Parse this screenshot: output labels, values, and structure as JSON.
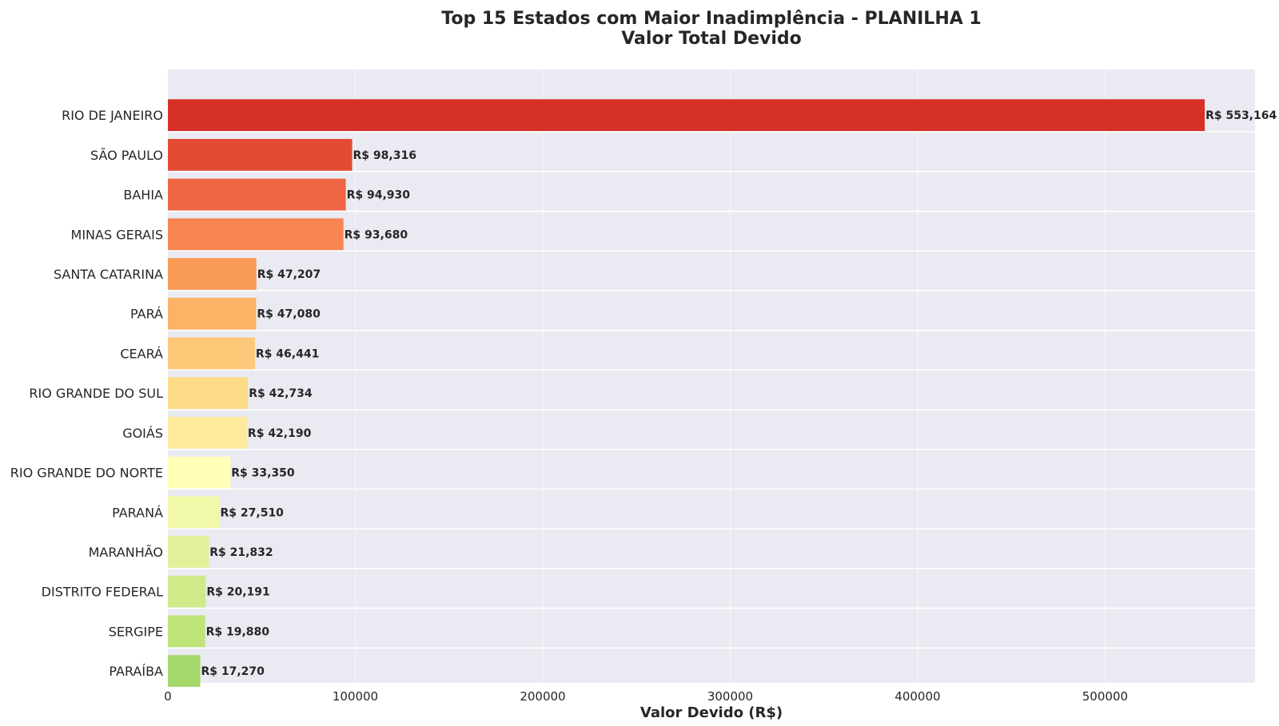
{
  "chart_data": {
    "type": "bar",
    "orientation": "horizontal",
    "title": "Top 15 Estados com Maior Inadimplência - PLANILHA 1",
    "subtitle": "Valor Total Devido",
    "xlabel": "Valor Devido (R$)",
    "ylabel": "",
    "xlim": [
      0,
      580000
    ],
    "xticks": [
      0,
      100000,
      200000,
      300000,
      400000,
      500000
    ],
    "xtick_labels": [
      "0",
      "100000",
      "200000",
      "300000",
      "400000",
      "500000"
    ],
    "grid": true,
    "background": "#eaeaf2",
    "categories": [
      "RIO DE JANEIRO",
      "SÃO PAULO",
      "BAHIA",
      "MINAS GERAIS",
      "SANTA CATARINA",
      "PARÁ",
      "CEARÁ",
      "RIO GRANDE DO SUL",
      "GOIÁS",
      "RIO GRANDE DO NORTE",
      "PARANÁ",
      "MARANHÃO",
      "DISTRITO FEDERAL",
      "SERGIPE",
      "PARAÍBA"
    ],
    "values": [
      553164,
      98316,
      94930,
      93680,
      47207,
      47080,
      46441,
      42734,
      42190,
      33350,
      27510,
      21832,
      20191,
      19880,
      17270
    ],
    "value_labels": [
      "R$ 553,164",
      "R$ 98,316",
      "R$ 94,930",
      "R$ 93,680",
      "R$ 47,207",
      "R$ 47,080",
      "R$ 46,441",
      "R$ 42,734",
      "R$ 42,190",
      "R$ 33,350",
      "R$ 27,510",
      "R$ 21,832",
      "R$ 20,191",
      "R$ 19,880",
      "R$ 17,270"
    ],
    "colors": [
      "#d73027",
      "#e34a33",
      "#f06744",
      "#f78451",
      "#fa9b58",
      "#fdb365",
      "#fec878",
      "#fedc88",
      "#fee99d",
      "#ffffb7",
      "#f1f9a9",
      "#e2f29a",
      "#d0ea8a",
      "#bde379",
      "#a5d86a"
    ]
  }
}
